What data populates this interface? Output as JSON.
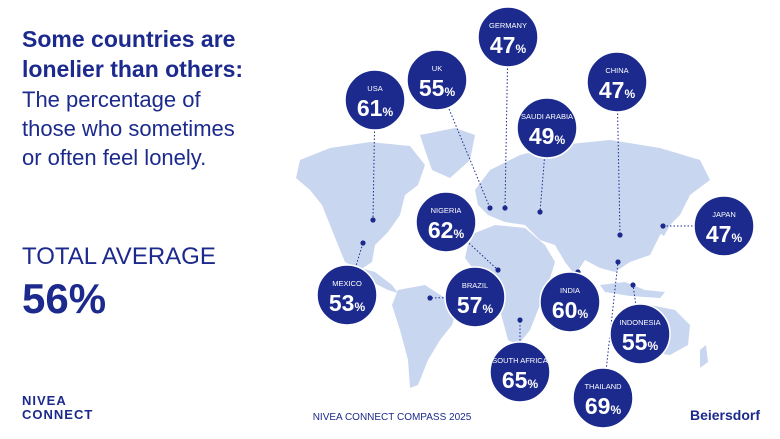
{
  "header": {
    "title_lines": [
      "Some countries are",
      "lonelier than others:"
    ],
    "subtitle_lines": [
      "The percentage of",
      "those who sometimes",
      "or often feel lonely."
    ]
  },
  "total": {
    "label": "TOTAL AVERAGE",
    "value": 56
  },
  "unit": "%",
  "countries": [
    {
      "name": "USA",
      "value": 61
    },
    {
      "name": "UK",
      "value": 55
    },
    {
      "name": "GERMANY",
      "value": 47
    },
    {
      "name": "CHINA",
      "value": 47
    },
    {
      "name": "SAUDI ARABIA",
      "value": 49
    },
    {
      "name": "NIGERIA",
      "value": 62
    },
    {
      "name": "JAPAN",
      "value": 47
    },
    {
      "name": "MEXICO",
      "value": 53
    },
    {
      "name": "BRAZIL",
      "value": 57
    },
    {
      "name": "INDIA",
      "value": 60
    },
    {
      "name": "INDONESIA",
      "value": 55
    },
    {
      "name": "SOUTH AFRICA",
      "value": 65
    },
    {
      "name": "THAILAND",
      "value": 69
    }
  ],
  "footer": {
    "logo_lines": [
      "NIVEA",
      "CONNECT"
    ],
    "caption": "NIVEA CONNECT COMPASS 2025",
    "brand": "Beiersdorf"
  }
}
